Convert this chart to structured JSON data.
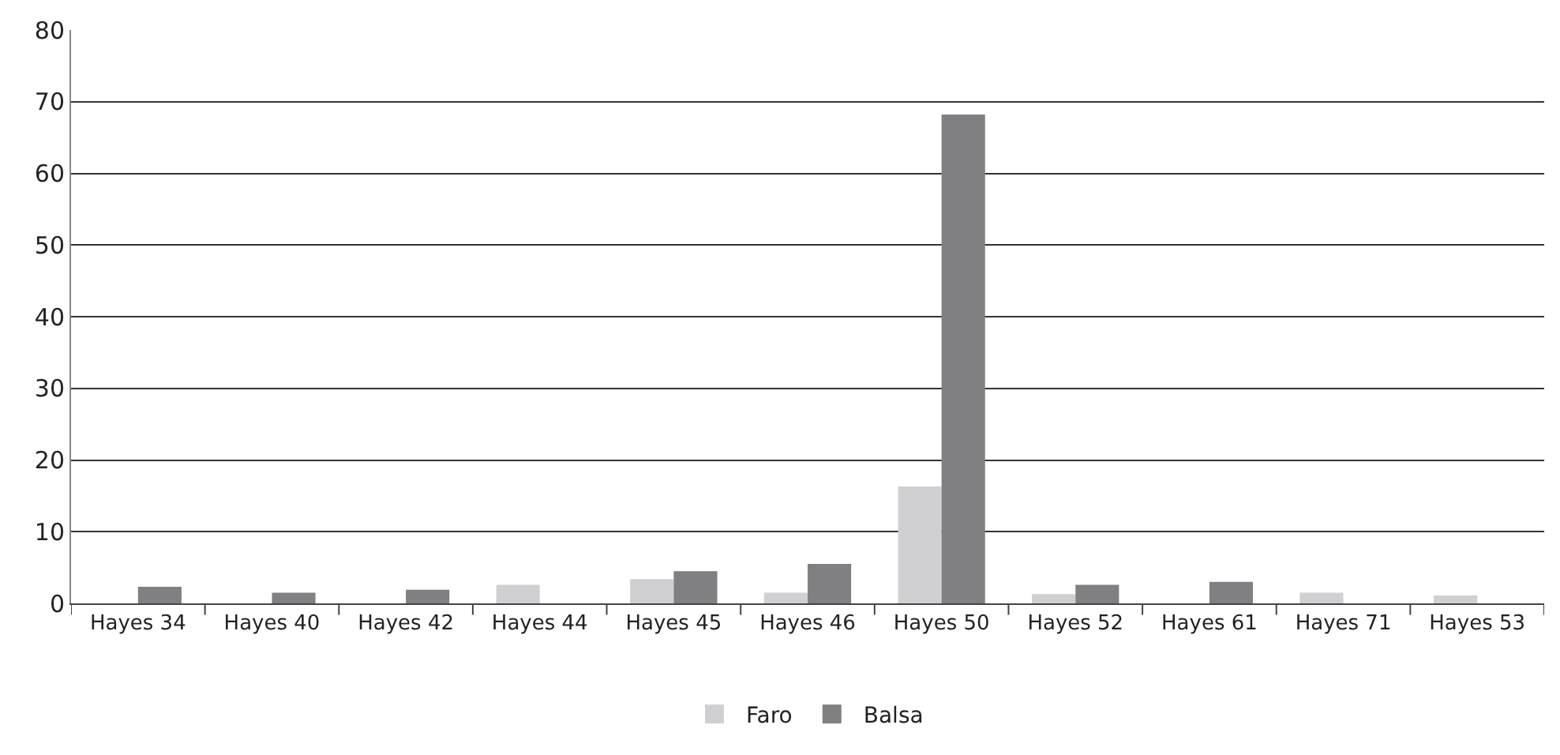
{
  "chart_data": {
    "type": "bar",
    "categories": [
      "Hayes 34",
      "Hayes 40",
      "Hayes 42",
      "Hayes 44",
      "Hayes 45",
      "Hayes 46",
      "Hayes 50",
      "Hayes 52",
      "Hayes 61",
      "Hayes 71",
      "Hayes 53"
    ],
    "series": [
      {
        "name": "Faro",
        "color": "#d0d0d2",
        "values": [
          null,
          null,
          null,
          2.6,
          3.4,
          1.5,
          16.3,
          1.3,
          null,
          1.5,
          1.1
        ]
      },
      {
        "name": "Balsa",
        "color": "#808083",
        "values": [
          2.3,
          1.5,
          1.9,
          null,
          4.5,
          5.5,
          68.2,
          2.6,
          3.0,
          null,
          null
        ]
      }
    ],
    "ylim": [
      0,
      80
    ],
    "yticks": [
      0,
      10,
      20,
      30,
      40,
      50,
      60,
      70,
      80
    ],
    "grid": "y",
    "legend": "bottom"
  }
}
